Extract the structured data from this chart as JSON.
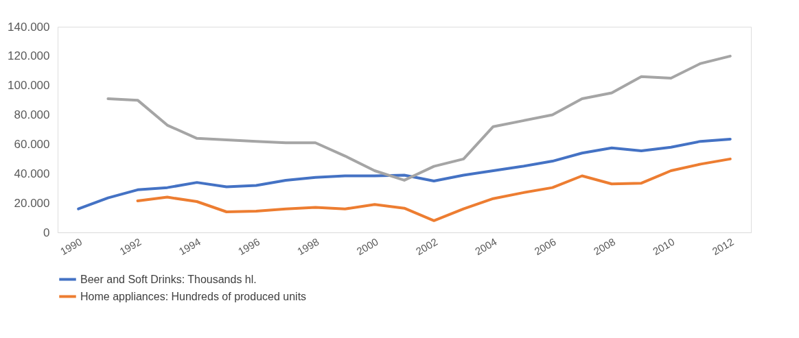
{
  "chart_data": {
    "type": "line",
    "categories": [
      "1990",
      null,
      "1992",
      null,
      "1994",
      null,
      "1996",
      null,
      "1998",
      null,
      "2000",
      null,
      "2002",
      null,
      "2004",
      null,
      "2006",
      null,
      "2008",
      null,
      "2010",
      null,
      "2012"
    ],
    "series": [
      {
        "name": "Beer and Soft Drinks: Thousands hl.",
        "color": "#4472c4",
        "values": [
          16000,
          23500,
          29000,
          30500,
          34000,
          31000,
          32000,
          35500,
          37500,
          38500,
          38500,
          39000,
          35000,
          39000,
          42000,
          45000,
          48500,
          54000,
          57500,
          55500,
          58000,
          62000,
          63500
        ]
      },
      {
        "name": "Home appliances: Hundreds of produced units",
        "color": "#ed7d31",
        "values": [
          null,
          null,
          21500,
          24000,
          21000,
          14000,
          14500,
          16000,
          17000,
          16000,
          19000,
          16500,
          8000,
          16000,
          23000,
          27000,
          30500,
          38500,
          33000,
          33500,
          42000,
          46500,
          50000
        ]
      },
      {
        "color": "#a5a5a5",
        "values": [
          null,
          91000,
          90000,
          73000,
          64000,
          63000,
          62000,
          61000,
          61000,
          52000,
          42000,
          35500,
          45000,
          50000,
          72000,
          76000,
          80000,
          91000,
          95000,
          106000,
          105000,
          115000,
          120000
        ]
      }
    ],
    "ylim": [
      0,
      140000
    ],
    "yticks": [
      {
        "value": 0,
        "label": "0"
      },
      {
        "value": 20000,
        "label": "20.000"
      },
      {
        "value": 40000,
        "label": "40.000"
      },
      {
        "value": 60000,
        "label": "60.000"
      },
      {
        "value": 80000,
        "label": "80.000"
      },
      {
        "value": 100000,
        "label": "100.000"
      },
      {
        "value": 120000,
        "label": "120.000"
      },
      {
        "value": 140000,
        "label": "140.000"
      }
    ],
    "grid": false,
    "legend": "bottom",
    "marker": "none",
    "line_style": "solid"
  }
}
